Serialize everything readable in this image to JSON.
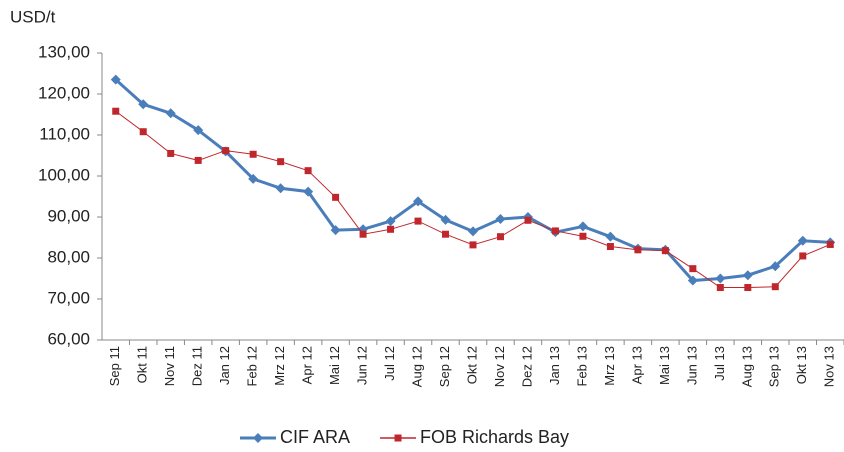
{
  "chart_data": {
    "type": "line",
    "y_label": "USD/t",
    "categories": [
      "Sep 11",
      "Okt 11",
      "Nov 11",
      "Dez 11",
      "Jan 12",
      "Feb 12",
      "Mrz 12",
      "Apr 12",
      "Mai 12",
      "Jun 12",
      "Jul 12",
      "Aug 12",
      "Sep 12",
      "Okt 12",
      "Nov 12",
      "Dez 12",
      "Jan 13",
      "Feb 13",
      "Mrz 13",
      "Apr 13",
      "Mai 13",
      "Jun 13",
      "Jul 13",
      "Aug 13",
      "Sep 13",
      "Okt 13",
      "Nov 13"
    ],
    "series": [
      {
        "name": "CIF ARA",
        "color": "#4a7ebb",
        "marker": "diamond",
        "values": [
          123.5,
          117.5,
          115.3,
          111.2,
          106,
          99.3,
          97,
          96.2,
          86.8,
          87,
          89,
          93.8,
          89.3,
          86.5,
          89.5,
          90,
          86.3,
          87.7,
          85.2,
          82.3,
          82,
          74.5,
          75,
          75.8,
          78,
          84.2,
          83.8
        ]
      },
      {
        "name": "FOB Richards Bay",
        "color": "#c0272d",
        "marker": "square",
        "values": [
          115.8,
          110.8,
          105.5,
          103.8,
          106.2,
          105.3,
          103.5,
          101.3,
          94.8,
          85.8,
          87,
          89,
          85.8,
          83.2,
          85.2,
          89.2,
          86.6,
          85.3,
          82.8,
          82,
          81.8,
          77.4,
          72.8,
          72.8,
          73,
          80.5,
          83.3
        ]
      }
    ],
    "ylim": [
      60,
      130
    ],
    "yticks": [
      {
        "value": 60,
        "label": "60,00"
      },
      {
        "value": 70,
        "label": "70,00"
      },
      {
        "value": 80,
        "label": "80,00"
      },
      {
        "value": 90,
        "label": "90,00"
      },
      {
        "value": 100,
        "label": "100,00"
      },
      {
        "value": 110,
        "label": "110,00"
      },
      {
        "value": 120,
        "label": "120,00"
      },
      {
        "value": 130,
        "label": "130,00"
      }
    ],
    "grid": false,
    "legend": "bottom"
  }
}
